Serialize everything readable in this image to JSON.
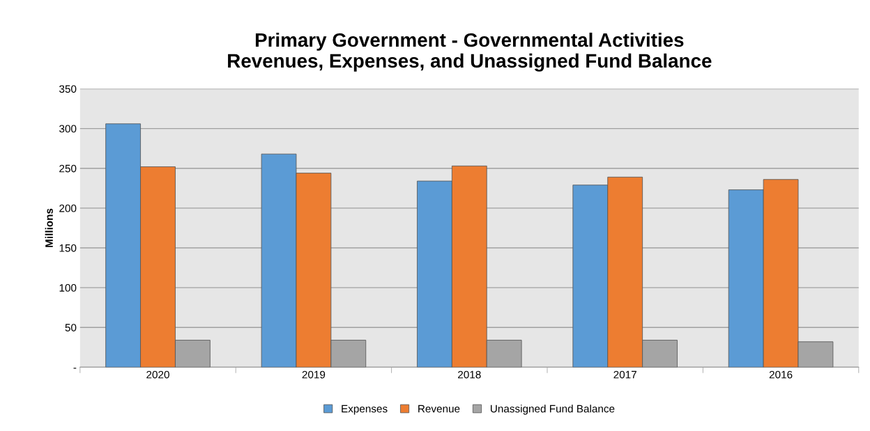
{
  "chart_data": {
    "type": "bar",
    "title": "Primary Government - Governmental Activities\nRevenues, Expenses, and Unassigned Fund Balance",
    "ylabel": "Millions",
    "categories": [
      "2020",
      "2019",
      "2018",
      "2017",
      "2016"
    ],
    "series": [
      {
        "name": "Expenses",
        "color": "#5b9bd5",
        "values": [
          306,
          268,
          234,
          229,
          223
        ]
      },
      {
        "name": "Revenue",
        "color": "#ed7d31",
        "values": [
          252,
          244,
          253,
          239,
          236
        ]
      },
      {
        "name": "Unassigned Fund Balance",
        "color": "#a5a5a5",
        "values": [
          34,
          34,
          34,
          34,
          32
        ]
      }
    ],
    "ylim": [
      0,
      350
    ],
    "yticks": [
      {
        "value": 0,
        "label": "-"
      },
      50,
      100,
      150,
      200,
      250,
      300,
      350
    ],
    "grid": "y",
    "legend": "bottom"
  }
}
